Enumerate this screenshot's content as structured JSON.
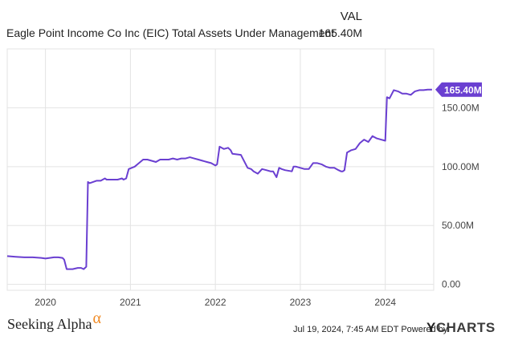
{
  "header": {
    "column_label": "VAL",
    "title": "Eagle Point Income Co Inc (EIC) Total Assets Under Management",
    "current_value": "165.40M"
  },
  "footer": {
    "logo_text": "Seeking Alpha",
    "logo_symbol": "α",
    "timestamp": "Jul 19, 2024, 7:45 AM EDT",
    "powered_by": "Powered by",
    "brand_mark": "Y",
    "brand_text": "CHARTS"
  },
  "colors": {
    "line": "#6a3fd1",
    "grid": "#e3e3e3",
    "axis_text": "#444444",
    "accent_orange": "#f08a24"
  },
  "chart_data": {
    "type": "line",
    "title": "Eagle Point Income Co Inc (EIC) Total Assets Under Management",
    "xlabel": "",
    "ylabel": "",
    "xlim": [
      2019.55,
      2024.57
    ],
    "ylim": [
      -5,
      200
    ],
    "x_ticks": [
      2020,
      2021,
      2022,
      2023,
      2024
    ],
    "x_tick_labels": [
      "2020",
      "2021",
      "2022",
      "2023",
      "2024"
    ],
    "y_ticks": [
      0,
      50,
      100,
      150
    ],
    "y_tick_labels": [
      "0.00",
      "50.00M",
      "100.00M",
      "150.00M"
    ],
    "grid": true,
    "last_value_label": "165.40M",
    "series": [
      {
        "x": [
          2019.55,
          2019.65,
          2019.75,
          2019.85,
          2019.95,
          2020.0,
          2020.1,
          2020.15,
          2020.2,
          2020.22,
          2020.25,
          2020.32,
          2020.38,
          2020.42,
          2020.45,
          2020.48,
          2020.5,
          2020.52,
          2020.6,
          2020.65,
          2020.7,
          2020.72,
          2020.8,
          2020.85,
          2020.9,
          2020.92,
          2020.95,
          2020.98,
          2021.05,
          2021.1,
          2021.15,
          2021.2,
          2021.25,
          2021.3,
          2021.35,
          2021.4,
          2021.45,
          2021.5,
          2021.55,
          2021.6,
          2021.65,
          2021.7,
          2021.75,
          2021.8,
          2021.85,
          2021.9,
          2021.95,
          2022.0,
          2022.02,
          2022.05,
          2022.1,
          2022.15,
          2022.18,
          2022.2,
          2022.3,
          2022.38,
          2022.42,
          2022.45,
          2022.5,
          2022.55,
          2022.6,
          2022.65,
          2022.68,
          2022.72,
          2022.75,
          2022.78,
          2022.82,
          2022.9,
          2022.92,
          2022.95,
          2023.0,
          2023.05,
          2023.1,
          2023.15,
          2023.2,
          2023.25,
          2023.3,
          2023.35,
          2023.4,
          2023.45,
          2023.48,
          2023.5,
          2023.52,
          2023.55,
          2023.6,
          2023.65,
          2023.7,
          2023.75,
          2023.8,
          2023.85,
          2023.9,
          2023.95,
          2024.0,
          2024.02,
          2024.05,
          2024.1,
          2024.15,
          2024.2,
          2024.25,
          2024.3,
          2024.35,
          2024.4,
          2024.45,
          2024.5,
          2024.55
        ],
        "y": [
          24,
          23.5,
          23,
          23,
          22.5,
          22,
          23,
          23,
          22.5,
          21,
          13,
          13,
          14,
          14,
          13,
          15,
          87,
          86,
          88,
          88,
          90,
          89,
          89,
          89,
          90,
          89,
          90,
          98,
          100,
          103,
          106,
          106,
          105,
          104,
          106,
          106,
          106,
          107,
          106,
          107,
          107,
          108,
          107,
          106,
          105,
          104,
          103,
          101,
          102,
          117,
          115,
          116,
          114,
          111,
          110,
          99,
          98,
          96,
          94,
          98,
          97,
          96,
          96,
          91,
          99,
          98,
          97,
          96,
          100,
          100,
          99,
          98,
          98,
          103,
          103,
          102,
          100,
          99,
          99,
          97,
          96,
          96,
          97,
          112,
          114,
          115,
          120,
          123,
          121,
          126,
          124,
          123,
          122,
          159,
          158,
          165,
          164,
          162,
          162,
          161,
          164,
          165,
          165,
          165.4,
          165.4
        ]
      }
    ]
  }
}
